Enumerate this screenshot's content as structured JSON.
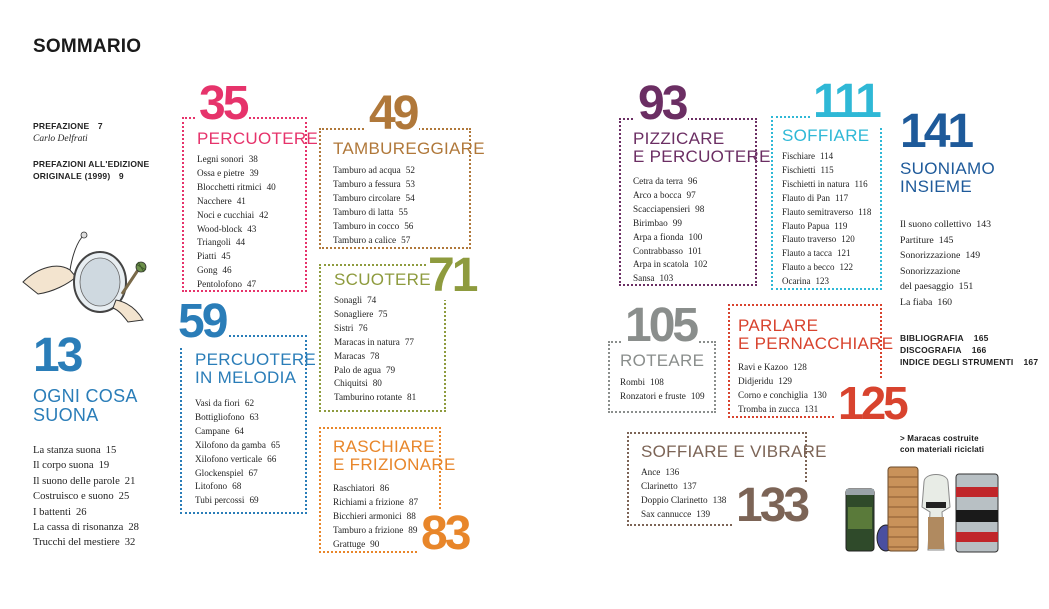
{
  "page_title": "SOMMARIO",
  "front": [
    {
      "label": "PREFAZIONE",
      "page": "7",
      "sub": "Carlo Delfrati"
    },
    {
      "label1": "PREFAZIONI ALL'EDIZIONE",
      "label2": "ORIGINALE (1999)",
      "page": "9"
    }
  ],
  "colors": {
    "pink": "#e6336b",
    "brown": "#b0783a",
    "olive": "#8e9b3e",
    "blue": "#2a7db8",
    "orange": "#e8862a",
    "purple": "#6b2e63",
    "cyan": "#2fb8d6",
    "navy": "#1e5a9a",
    "grey": "#8a8e8c",
    "red": "#d8432e",
    "taupe": "#7c6456"
  },
  "sections": {
    "s13": {
      "number": "13",
      "title1": "OGNI COSA",
      "title2": "SUONA",
      "items": [
        {
          "t": "La stanza suona",
          "p": "15"
        },
        {
          "t": "Il corpo suona",
          "p": "19"
        },
        {
          "t": "Il suono delle parole",
          "p": "21"
        },
        {
          "t": "Costruisco e suono",
          "p": "25"
        },
        {
          "t": "I battenti",
          "p": "26"
        },
        {
          "t": "La cassa di risonanza",
          "p": "28"
        },
        {
          "t": "Trucchi del mestiere",
          "p": "32"
        }
      ]
    },
    "s35": {
      "number": "35",
      "title": "PERCUOTERE",
      "items": [
        {
          "t": "Legni sonori",
          "p": "38"
        },
        {
          "t": "Ossa e pietre",
          "p": "39"
        },
        {
          "t": "Blocchetti ritmici",
          "p": "40"
        },
        {
          "t": "Nacchere",
          "p": "41"
        },
        {
          "t": "Noci e cucchiai",
          "p": "42"
        },
        {
          "t": "Wood-block",
          "p": "43"
        },
        {
          "t": "Triangoli",
          "p": "44"
        },
        {
          "t": "Piatti",
          "p": "45"
        },
        {
          "t": "Gong",
          "p": "46"
        },
        {
          "t": "Pentolofono",
          "p": "47"
        }
      ]
    },
    "s49": {
      "number": "49",
      "title": "TAMBUREGGIARE",
      "items": [
        {
          "t": "Tamburo ad acqua",
          "p": "52"
        },
        {
          "t": "Tamburo a fessura",
          "p": "53"
        },
        {
          "t": "Tamburo circolare",
          "p": "54"
        },
        {
          "t": "Tamburo di latta",
          "p": "55"
        },
        {
          "t": "Tamburo in cocco",
          "p": "56"
        },
        {
          "t": "Tamburo a calice",
          "p": "57"
        }
      ]
    },
    "s71": {
      "number": "71",
      "title": "SCUOTERE",
      "items": [
        {
          "t": "Sonagli",
          "p": "74"
        },
        {
          "t": "Sonagliere",
          "p": "75"
        },
        {
          "t": "Sistri",
          "p": "76"
        },
        {
          "t": "Maracas in natura",
          "p": "77"
        },
        {
          "t": "Maracas",
          "p": "78"
        },
        {
          "t": "Palo de agua",
          "p": "79"
        },
        {
          "t": "Chiquitsi",
          "p": "80"
        },
        {
          "t": "Tamburino rotante",
          "p": "81"
        }
      ]
    },
    "s59": {
      "number": "59",
      "title1": "PERCUOTERE",
      "title2": "IN MELODIA",
      "items": [
        {
          "t": "Vasi da fiori",
          "p": "62"
        },
        {
          "t": "Bottigliofono",
          "p": "63"
        },
        {
          "t": "Campane",
          "p": "64"
        },
        {
          "t": "Xilofono da gamba",
          "p": "65"
        },
        {
          "t": "Xilofono verticale",
          "p": "66"
        },
        {
          "t": "Glockenspiel",
          "p": "67"
        },
        {
          "t": "Litofono",
          "p": "68"
        },
        {
          "t": "Tubi percossi",
          "p": "69"
        }
      ]
    },
    "s83": {
      "number": "83",
      "title1": "RASCHIARE",
      "title2": "E FRIZIONARE",
      "items": [
        {
          "t": "Raschiatori",
          "p": "86"
        },
        {
          "t": "Richiami a frizione",
          "p": "87"
        },
        {
          "t": "Bicchieri armonici",
          "p": "88"
        },
        {
          "t": "Tamburo a frizione",
          "p": "89"
        },
        {
          "t": "Grattuge",
          "p": "90"
        }
      ]
    },
    "s93": {
      "number": "93",
      "title1": "PIZZICARE",
      "title2": "E PERCUOTERE",
      "items": [
        {
          "t": "Cetra da terra",
          "p": "96"
        },
        {
          "t": "Arco a bocca",
          "p": "97"
        },
        {
          "t": "Scacciapensieri",
          "p": "98"
        },
        {
          "t": "Birimbao",
          "p": "99"
        },
        {
          "t": "Arpa a fionda",
          "p": "100"
        },
        {
          "t": "Contrabbasso",
          "p": "101"
        },
        {
          "t": "Arpa in scatola",
          "p": "102"
        },
        {
          "t": "Sansa",
          "p": "103"
        }
      ]
    },
    "s111": {
      "number": "111",
      "title": "SOFFIARE",
      "items": [
        {
          "t": "Fischiare",
          "p": "114"
        },
        {
          "t": "Fischietti",
          "p": "115"
        },
        {
          "t": "Fischietti in natura",
          "p": "116"
        },
        {
          "t": "Flauto di Pan",
          "p": "117"
        },
        {
          "t": "Flauto semitraverso",
          "p": "118"
        },
        {
          "t": "Flauto Papua",
          "p": "119"
        },
        {
          "t": "Flauto traverso",
          "p": "120"
        },
        {
          "t": "Flauto a tacca",
          "p": "121"
        },
        {
          "t": "Flauto a becco",
          "p": "122"
        },
        {
          "t": "Ocarina",
          "p": "123"
        }
      ]
    },
    "s141": {
      "number": "141",
      "title1": "SUONIAMO",
      "title2": "INSIEME",
      "items": [
        {
          "t": "Il suono collettivo",
          "p": "143"
        },
        {
          "t": "Partiture",
          "p": "145"
        },
        {
          "t": "Sonorizzazione",
          "p": "149"
        },
        {
          "t": "Sonorizzazione",
          "p": ""
        },
        {
          "t": "del paesaggio",
          "p": "151"
        },
        {
          "t": "La fiaba",
          "p": "160"
        }
      ]
    },
    "s105": {
      "number": "105",
      "title": "ROTEARE",
      "items": [
        {
          "t": "Rombi",
          "p": "108"
        },
        {
          "t": "Ronzatori e fruste",
          "p": "109"
        }
      ]
    },
    "s125": {
      "number": "125",
      "title1": "PARLARE",
      "title2": "E PERNACCHIARE",
      "items": [
        {
          "t": "Ravi e Kazoo",
          "p": "128"
        },
        {
          "t": "Didjeridu",
          "p": "129"
        },
        {
          "t": "Corno e conchiglia",
          "p": "130"
        },
        {
          "t": "Tromba in zucca",
          "p": "131"
        }
      ]
    },
    "s133": {
      "number": "133",
      "title": "SOFFIARE E VIBRARE",
      "items": [
        {
          "t": "Ance",
          "p": "136"
        },
        {
          "t": "Clarinetto",
          "p": "137"
        },
        {
          "t": "Doppio Clarinetto",
          "p": "138"
        },
        {
          "t": "Sax cannucce",
          "p": "139"
        }
      ]
    }
  },
  "appendix": [
    {
      "t": "BIBLIOGRAFIA",
      "p": "165"
    },
    {
      "t": "DISCOGRAFIA",
      "p": "166"
    },
    {
      "t": "INDICE DEGLI STRUMENTI",
      "p": "167"
    }
  ],
  "caption": {
    "line1": "> Maracas costruite",
    "line2": "con materiali riciclati"
  },
  "images": {
    "left": "hands-with-tambourine-illustration",
    "right": "recycled-maracas-photo"
  }
}
